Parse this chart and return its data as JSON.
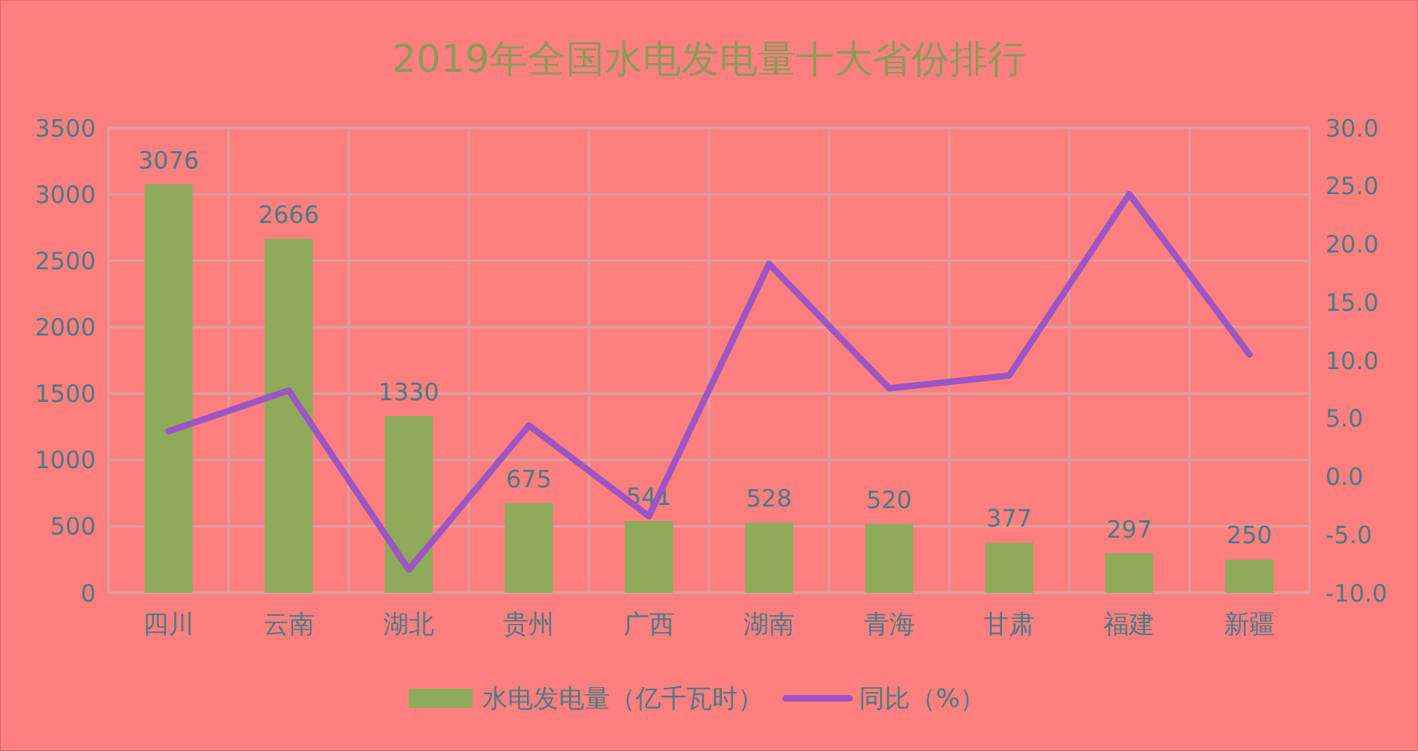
{
  "chart_data": {
    "type": "bar",
    "title": "2019年全国水电发电量十大省份排行",
    "categories": [
      "四川",
      "云南",
      "湖北",
      "贵州",
      "广西",
      "湖南",
      "青海",
      "甘肃",
      "福建",
      "新疆"
    ],
    "series": [
      {
        "name": "水电发电量（亿千瓦时）",
        "color": "#8faa5a",
        "values": [
          3076,
          2666,
          1330,
          675,
          541,
          528,
          520,
          377,
          297,
          250
        ],
        "value_labels": [
          "3076",
          "2666",
          "1330",
          "675",
          "541",
          "528",
          "520",
          "377",
          "297",
          "250"
        ]
      },
      {
        "name": "同比（%）",
        "type": "line",
        "axis": "y2",
        "color": "#9b55c4",
        "values": [
          3.9,
          7.4,
          -8.0,
          4.4,
          -3.4,
          18.3,
          7.6,
          8.7,
          24.3,
          10.5
        ]
      }
    ],
    "ylim": [
      0,
      3500
    ],
    "yticks": [
      0,
      500,
      1000,
      1500,
      2000,
      2500,
      3000,
      3500
    ],
    "y2lim": [
      -10,
      30
    ],
    "y2ticks": [
      {
        "value": -10,
        "label": "-10.0"
      },
      {
        "value": -5,
        "label": "-5.0"
      },
      {
        "value": 0,
        "label": "0.0"
      },
      {
        "value": 5,
        "label": "5.0"
      },
      {
        "value": 10,
        "label": "10.0"
      },
      {
        "value": 15,
        "label": "15.0"
      },
      {
        "value": 20,
        "label": "20.0"
      },
      {
        "value": 25,
        "label": "25.0"
      },
      {
        "value": 30,
        "label": "30.0"
      }
    ],
    "grid": true,
    "legend": "bottom",
    "marker": "none",
    "line_style": "solid"
  }
}
